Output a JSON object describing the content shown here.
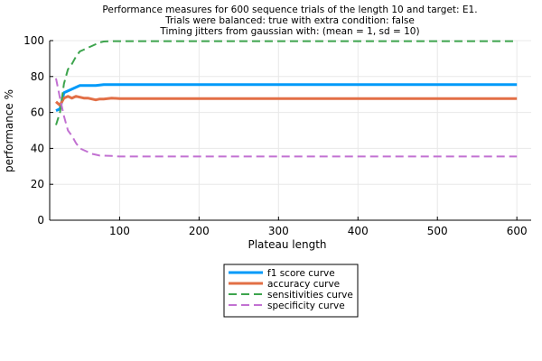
{
  "chart_data": {
    "type": "line",
    "title": [
      "Performance measures for 600 sequence trials of the length 10 and target: E1.",
      "Trials were balanced: true with extra condition: false",
      "Timing jitters from gaussian with: (mean = 1, sd = 10)"
    ],
    "xlabel": "Plateau length",
    "ylabel": "performance %",
    "xlim": [
      12,
      618
    ],
    "ylim": [
      0,
      100
    ],
    "xticks": [
      100,
      200,
      300,
      400,
      500,
      600
    ],
    "yticks": [
      0,
      20,
      40,
      60,
      80,
      100
    ],
    "grid": true,
    "legend_position": "bottom-center",
    "series": [
      {
        "name": "f1 score curve",
        "color": "#009af9",
        "dash": "solid",
        "x": [
          20,
          25,
          30,
          35,
          40,
          45,
          50,
          55,
          60,
          70,
          80,
          90,
          100,
          150,
          200,
          300,
          400,
          500,
          600
        ],
        "y": [
          61,
          62,
          71,
          72,
          73,
          74,
          75,
          75,
          75,
          75,
          75.5,
          75.5,
          75.5,
          75.5,
          75.5,
          75.5,
          75.5,
          75.5,
          75.5
        ]
      },
      {
        "name": "accuracy curve",
        "color": "#e26f46",
        "dash": "solid",
        "x": [
          20,
          25,
          30,
          35,
          40,
          45,
          50,
          55,
          60,
          65,
          70,
          75,
          80,
          90,
          100,
          150,
          200,
          300,
          400,
          500,
          600
        ],
        "y": [
          66,
          64,
          68,
          69,
          68,
          69,
          68.5,
          68,
          68,
          67.5,
          67,
          67.5,
          67.5,
          68,
          67.7,
          67.7,
          67.7,
          67.7,
          67.7,
          67.7,
          67.7
        ]
      },
      {
        "name": "sensitivities curve",
        "color": "#3da44d",
        "dash": "dashed",
        "x": [
          20,
          25,
          30,
          35,
          40,
          45,
          50,
          55,
          60,
          65,
          70,
          75,
          80,
          90,
          100,
          150,
          200,
          300,
          400,
          500,
          600
        ],
        "y": [
          53,
          60,
          76,
          84,
          87,
          91,
          94,
          95,
          96,
          97,
          98,
          99,
          99.5,
          99.7,
          99.7,
          99.7,
          99.7,
          99.7,
          99.7,
          99.7,
          99.7
        ]
      },
      {
        "name": "specificity curve",
        "color": "#c271d2",
        "dash": "dashed",
        "x": [
          20,
          25,
          30,
          35,
          40,
          45,
          50,
          55,
          60,
          65,
          70,
          75,
          80,
          90,
          100,
          150,
          200,
          300,
          400,
          500,
          600
        ],
        "y": [
          79,
          68,
          58,
          50,
          47,
          43,
          40,
          39,
          38,
          37,
          36.5,
          36,
          36,
          35.8,
          35.5,
          35.5,
          35.5,
          35.5,
          35.5,
          35.5,
          35.5
        ]
      }
    ]
  }
}
